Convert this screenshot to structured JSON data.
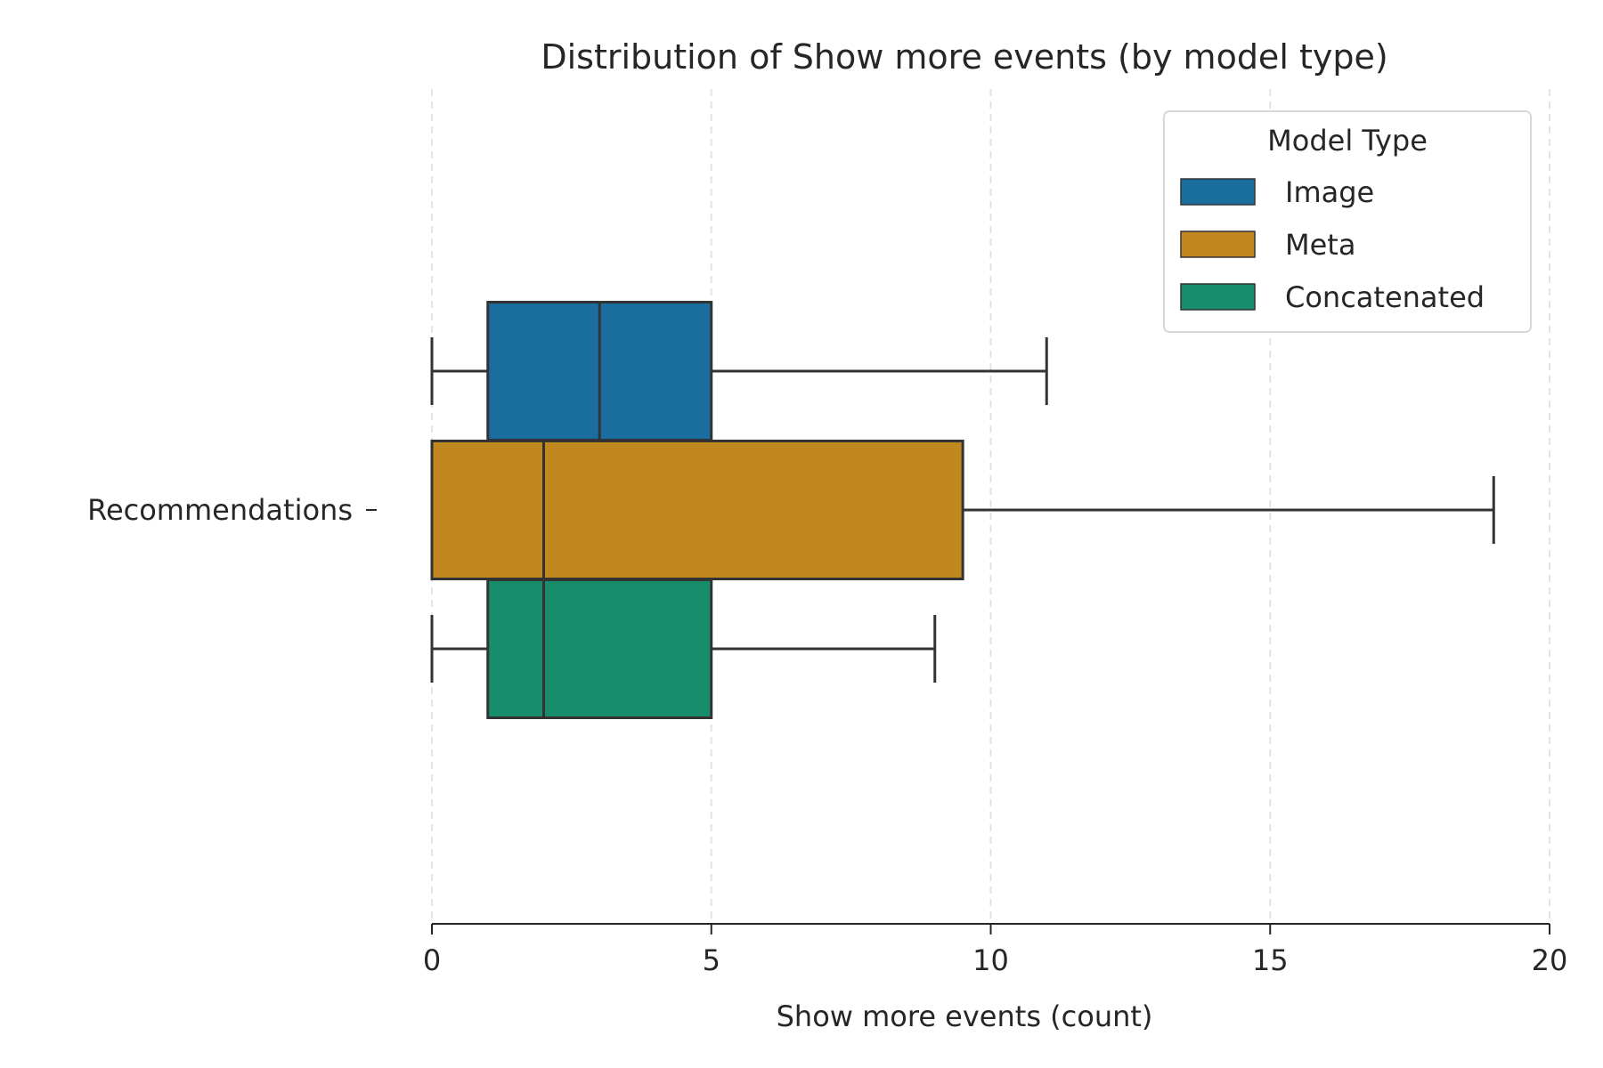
{
  "chart_data": {
    "type": "box",
    "orientation": "horizontal",
    "title": "Distribution of Show more events (by model type)",
    "xlabel": "Show more events (count)",
    "ylabel": "",
    "xlim": [
      0,
      20
    ],
    "xticks": [
      "0",
      "5",
      "10",
      "15",
      "20"
    ],
    "categories": [
      "Recommendations"
    ],
    "grid": "vertical dashed",
    "legend": {
      "title": "Model Type",
      "placement": "top-right"
    },
    "series": [
      {
        "name": "Image",
        "color": "#1a6e9e",
        "whisker_low": 0,
        "q1": 1,
        "median": 3,
        "q3": 5,
        "whisker_high": 11
      },
      {
        "name": "Meta",
        "color": "#c18820",
        "whisker_low": 0,
        "q1": 0,
        "median": 2,
        "q3": 9.5,
        "whisker_high": 19
      },
      {
        "name": "Concatenated",
        "color": "#178d6b",
        "whisker_low": 0,
        "q1": 1,
        "median": 2,
        "q3": 5,
        "whisker_high": 9
      }
    ]
  }
}
